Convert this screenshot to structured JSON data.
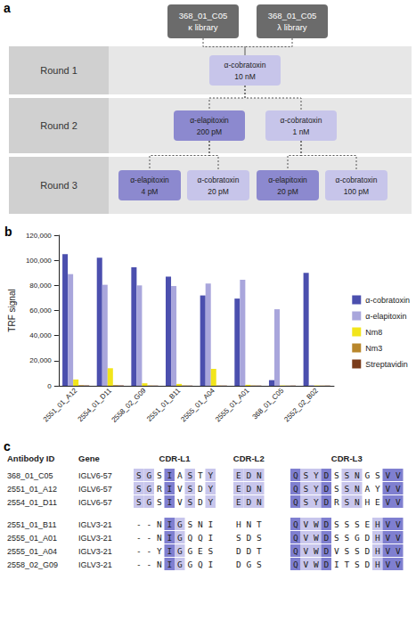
{
  "panel_labels": [
    "a",
    "b",
    "c"
  ],
  "panel_a": {
    "libraries": [
      {
        "lines": [
          "368_01_C05",
          "κ library"
        ]
      },
      {
        "lines": [
          "368_01_C05",
          "λ library"
        ]
      }
    ],
    "rounds": [
      {
        "label": "Round 1",
        "selections": [
          {
            "antigen": "α-cobratoxin",
            "concentration": "10 nM"
          }
        ]
      },
      {
        "label": "Round 2",
        "selections": [
          {
            "antigen": "α-elapitoxin",
            "concentration": "200 pM"
          },
          {
            "antigen": "α-cobratoxin",
            "concentration": "1 nM"
          }
        ]
      },
      {
        "label": "Round 3",
        "selections": [
          {
            "antigen": "α-elapitoxin",
            "concentration": "4 pM"
          },
          {
            "antigen": "α-cobratoxin",
            "concentration": "20 pM"
          },
          {
            "antigen": "α-elapitoxin",
            "concentration": "20 pM"
          },
          {
            "antigen": "α-cobratoxin",
            "concentration": "100 pM"
          }
        ]
      }
    ]
  },
  "chart_data": {
    "type": "bar",
    "y_label": "TRF signal",
    "categories": [
      "2551_01_A12",
      "2554_01_D11",
      "2558_02_G09",
      "2551_01_B11",
      "2555_01_A04",
      "2555_01_A01",
      "368_01_C05",
      "2552_02_B02"
    ],
    "series": [
      {
        "name": "α-cobratoxin",
        "color": "#4b4fae",
        "values": [
          105000,
          102000,
          94500,
          87000,
          72000,
          69500,
          4500,
          90000
        ]
      },
      {
        "name": "α-elapitoxin",
        "color": "#a9a6dc",
        "values": [
          89000,
          80500,
          80000,
          79500,
          81500,
          84500,
          61000,
          500
        ]
      },
      {
        "name": "Nm8",
        "color": "#f2e51a",
        "values": [
          5000,
          14000,
          2000,
          1500,
          13500,
          800,
          300,
          300
        ]
      },
      {
        "name": "Nm3",
        "color": "#b8862b",
        "values": [
          500,
          500,
          300,
          300,
          300,
          300,
          200,
          200
        ]
      },
      {
        "name": "Streptavidin",
        "color": "#7a3b1a",
        "values": [
          300,
          300,
          200,
          200,
          200,
          200,
          200,
          200
        ]
      }
    ],
    "ylim": [
      0,
      120000
    ],
    "yticks": [
      0,
      {
        "value": 20000,
        "label": "20,000"
      },
      {
        "value": 40000,
        "label": "40,000"
      },
      {
        "value": 60000,
        "label": "60,000"
      },
      {
        "value": 80000,
        "label": "80,000"
      },
      {
        "value": 100000,
        "label": "100,000"
      },
      {
        "value": 120000,
        "label": "120,000"
      }
    ],
    "grid": false,
    "legend": "right"
  },
  "panel_c": {
    "headers": [
      "Antibody ID",
      "Gene",
      "CDR-L1",
      "CDR-L2",
      "CDR-L3"
    ],
    "rows": [
      {
        "id": "368_01_C05",
        "gene": "IGLV6-57",
        "l1": "SGSIASTY",
        "l2": "EDN",
        "l3": "QSYDSSNGSVV"
      },
      {
        "id": "2551_01_A12",
        "gene": "IGLV6-57",
        "l1": "SGRIVSDY",
        "l2": "EDN",
        "l3": "QSYDSSNAYVV"
      },
      {
        "id": "2554_01_D11",
        "gene": "IGLV6-57",
        "l1": "SGSIVSDY",
        "l2": "EDN",
        "l3": "QSYDRSNHEVV"
      },
      {
        "id": "2551_01_B11",
        "gene": "IGLV3-21",
        "l1": "--NIGSNI",
        "l2": "HNT",
        "l3": "QVWDSSSEHVV"
      },
      {
        "id": "2555_01_A01",
        "gene": "IGLV3-21",
        "l1": "--NIGQQI",
        "l2": "SDS",
        "l3": "QVWDSSGDHVV"
      },
      {
        "id": "2555_01_A04",
        "gene": "IGLV3-21",
        "l1": "--YIGGES",
        "l2": "DDT",
        "l3": "QVWDVSSDHVV"
      },
      {
        "id": "2558_02_G09",
        "gene": "IGLV3-21",
        "l1": "--NIGGQI",
        "l2": "DGS",
        "l3": "QVWDITSDHVV"
      }
    ]
  }
}
